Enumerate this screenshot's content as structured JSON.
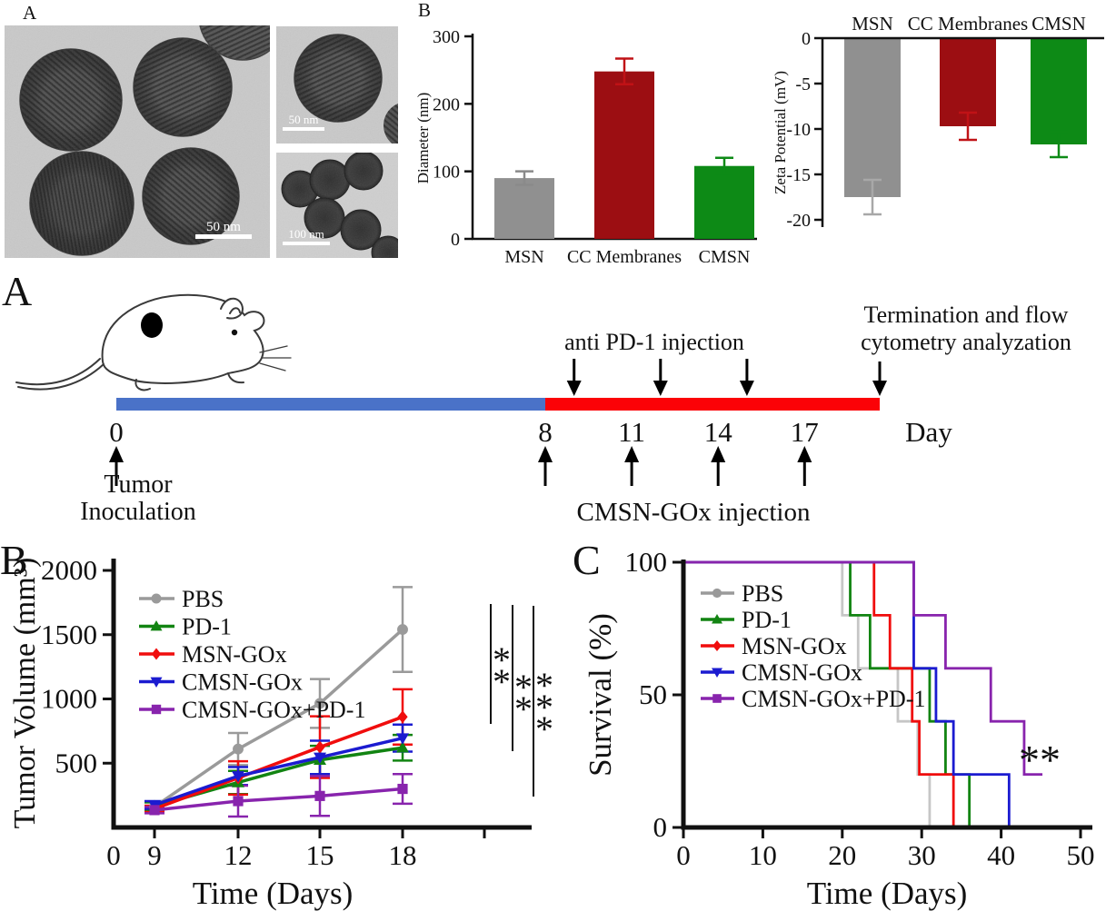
{
  "panel_labels": {
    "tem": "A",
    "characterization": "B",
    "timeline": "A",
    "tumor": "B",
    "survival": "C"
  },
  "tem": {
    "scale_main": "50 nm",
    "scale_inset_top": "50 nm",
    "scale_inset_bottom": "100 nm"
  },
  "timeline": {
    "day_axis_label": "Day",
    "ticks": [
      {
        "day": 0,
        "label": "0"
      },
      {
        "day": 8,
        "label": "8"
      },
      {
        "day": 11,
        "label": "11"
      },
      {
        "day": 14,
        "label": "14"
      },
      {
        "day": 17,
        "label": "17"
      }
    ],
    "pre_segment_days": [
      0,
      8
    ],
    "post_segment_days": [
      8,
      19.6
    ],
    "pre_color": "#4a72c8",
    "post_color": "#fb0207",
    "anti_pd1_label": "anti PD-1 injection",
    "anti_pd1_arrow_days": [
      9,
      12,
      15
    ],
    "cmsn_label": "CMSN-GOx injection",
    "cmsn_arrow_days": [
      8,
      11,
      14,
      17
    ],
    "inoculation_day": 0,
    "inoculation_label_line1": "Tumor",
    "inoculation_label_line2": "Inoculation",
    "termination_label_line1": "Termination and flow",
    "termination_label_line2": "cytometry analyzation"
  },
  "chart_data": [
    {
      "id": "diameter",
      "type": "bar",
      "categories": [
        "MSN",
        "CC Membranes",
        "CMSN"
      ],
      "values": [
        90,
        248,
        108
      ],
      "errors": [
        10,
        19,
        12
      ],
      "bar_colors": [
        "#909090",
        "#9c0e12",
        "#0d8a16"
      ],
      "error_colors": [
        "#8a8a8a",
        "#c01216",
        "#0d8a16"
      ],
      "ylabel": "Diameter (nm)",
      "yticks": [
        0,
        100,
        200,
        300
      ],
      "ylim": [
        0,
        300
      ]
    },
    {
      "id": "zeta",
      "type": "bar",
      "categories": [
        "MSN",
        "CC Membranes",
        "CMSN"
      ],
      "values": [
        -17.5,
        -9.7,
        -11.7
      ],
      "errors": [
        1.9,
        1.5,
        1.4
      ],
      "bar_colors": [
        "#909090",
        "#9c0e12",
        "#0d8a16"
      ],
      "error_colors": [
        "#a8a8a8",
        "#c01216",
        "#0d8a16"
      ],
      "ylabel": "Zeta Potential (mV)",
      "yticks": [
        0,
        -5,
        -10,
        -15,
        -20
      ],
      "ylim": [
        0,
        -20
      ]
    },
    {
      "id": "tumor_volume",
      "type": "line",
      "x": [
        9,
        12,
        15,
        18
      ],
      "xtick_labels": [
        "0",
        "9",
        "12",
        "15",
        "18"
      ],
      "xlabel": "Time (Days)",
      "ylabel": "Tumor Volume (mm³)",
      "yticks": [
        500,
        1000,
        1500,
        2000
      ],
      "ylim": [
        0,
        2000
      ],
      "series": [
        {
          "name": "PBS",
          "color": "#9a9a9a",
          "marker": "circle",
          "values": [
            160,
            610,
            965,
            1540
          ],
          "errors": [
            35,
            125,
            190,
            330
          ]
        },
        {
          "name": "PD-1",
          "color": "#128412",
          "marker": "triangle-up",
          "values": [
            165,
            350,
            525,
            620
          ],
          "errors": [
            30,
            90,
            110,
            100
          ]
        },
        {
          "name": "MSN-GOx",
          "color": "#f00d0d",
          "marker": "diamond",
          "values": [
            145,
            385,
            625,
            860
          ],
          "errors": [
            25,
            130,
            240,
            215
          ]
        },
        {
          "name": "CMSN-GOx",
          "color": "#1b1bd0",
          "marker": "triangle-down",
          "values": [
            175,
            400,
            545,
            695
          ],
          "errors": [
            30,
            70,
            130,
            105
          ]
        },
        {
          "name": "CMSN-GOx+PD-1",
          "color": "#8824ad",
          "marker": "square",
          "values": [
            135,
            205,
            245,
            300
          ],
          "errors": [
            25,
            120,
            155,
            115
          ]
        }
      ],
      "significance": [
        "**",
        "**",
        "***"
      ]
    },
    {
      "id": "survival",
      "type": "step",
      "xlabel": "Time (Days)",
      "ylabel": "Survival (%)",
      "xticks": [
        0,
        10,
        20,
        30,
        40,
        50
      ],
      "yticks": [
        0,
        50,
        100
      ],
      "xlim": [
        0,
        50
      ],
      "ylim": [
        0,
        100
      ],
      "annotation": "**",
      "series": [
        {
          "name": "PBS",
          "color": "#9a9a9a",
          "curve_color": "#c6c6c6",
          "marker": "circle",
          "points": [
            [
              0,
              100
            ],
            [
              20,
              100
            ],
            [
              20,
              80
            ],
            [
              22,
              80
            ],
            [
              22,
              60
            ],
            [
              27,
              60
            ],
            [
              27,
              40
            ],
            [
              29.5,
              40
            ],
            [
              29.5,
              20
            ],
            [
              31,
              20
            ],
            [
              31,
              0
            ]
          ]
        },
        {
          "name": "PD-1",
          "color": "#128412",
          "marker": "triangle-up",
          "points": [
            [
              0,
              100
            ],
            [
              21,
              100
            ],
            [
              21,
              80
            ],
            [
              23.5,
              80
            ],
            [
              23.5,
              60
            ],
            [
              31,
              60
            ],
            [
              31,
              40
            ],
            [
              33,
              40
            ],
            [
              33,
              20
            ],
            [
              36,
              20
            ],
            [
              36,
              0
            ]
          ]
        },
        {
          "name": "MSN-GOx",
          "color": "#f00d0d",
          "marker": "diamond",
          "points": [
            [
              0,
              100
            ],
            [
              24,
              100
            ],
            [
              24,
              80
            ],
            [
              26,
              80
            ],
            [
              26,
              60
            ],
            [
              28.8,
              60
            ],
            [
              28.8,
              40
            ],
            [
              29.7,
              40
            ],
            [
              29.7,
              20
            ],
            [
              34,
              20
            ],
            [
              34,
              0
            ]
          ]
        },
        {
          "name": "CMSN-GOx",
          "color": "#1b1bd0",
          "marker": "triangle-down",
          "points": [
            [
              0,
              100
            ],
            [
              29,
              100
            ],
            [
              29,
              60
            ],
            [
              31.8,
              60
            ],
            [
              31.8,
              40
            ],
            [
              34,
              40
            ],
            [
              34,
              20
            ],
            [
              41,
              20
            ],
            [
              41,
              0
            ]
          ]
        },
        {
          "name": "CMSN-GOx+PD-1",
          "color": "#8824ad",
          "marker": "square",
          "points": [
            [
              0,
              100
            ],
            [
              29,
              100
            ],
            [
              29,
              80
            ],
            [
              33,
              80
            ],
            [
              33,
              60
            ],
            [
              38.7,
              60
            ],
            [
              38.7,
              40
            ],
            [
              42.9,
              40
            ],
            [
              42.9,
              20
            ],
            [
              45.2,
              20
            ]
          ]
        }
      ]
    }
  ]
}
